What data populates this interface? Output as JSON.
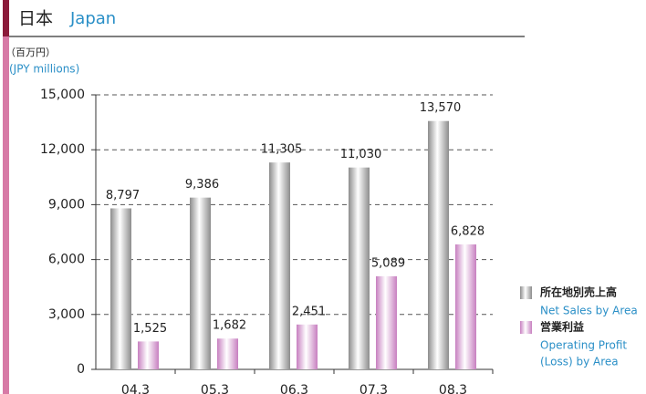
{
  "chart_data": {
    "type": "bar",
    "title": "日本",
    "title_en": "Japan",
    "unit": "（百万円）",
    "unit_en": "(JPY millions)",
    "categories": [
      "04.3",
      "05.3",
      "06.3",
      "07.3",
      "08.3"
    ],
    "series": [
      {
        "name": "所在地別売上高",
        "name_en": [
          "Net Sales by Area"
        ],
        "color": "#8c8c8c",
        "values": [
          8797,
          9386,
          11305,
          11030,
          13570
        ],
        "value_labels": [
          "8,797",
          "9,386",
          "11,305",
          "11,030",
          "13,570"
        ]
      },
      {
        "name": "営業利益",
        "name_en": [
          "Operating Profit",
          "(Loss) by Area"
        ],
        "color": "#c77fc0",
        "values": [
          1525,
          1682,
          2451,
          5089,
          6828
        ],
        "value_labels": [
          "1,525",
          "1,682",
          "2,451",
          "5,089",
          "6,828"
        ]
      }
    ],
    "ylim": [
      0,
      15000
    ],
    "yticks": [
      0,
      {
        "value": 3000,
        "label": "3,000"
      },
      {
        "value": 6000,
        "label": "6,000"
      },
      {
        "value": 9000,
        "label": "9,000"
      },
      {
        "value": 12000,
        "label": "12,000"
      },
      {
        "value": 15000,
        "label": "15,000"
      }
    ],
    "grid": true
  }
}
